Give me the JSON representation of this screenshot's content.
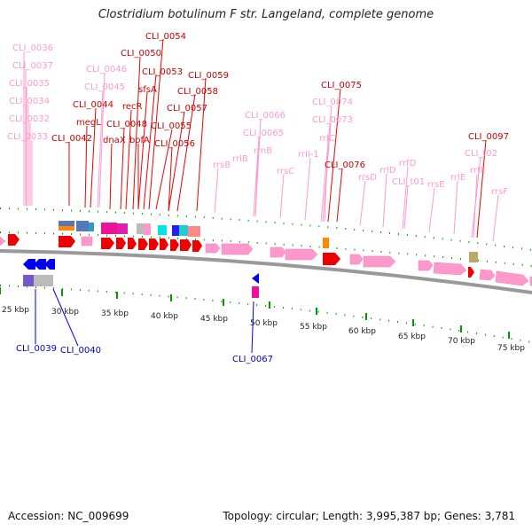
{
  "title": "Clostridium botulinum F str. Langeland, complete genome",
  "footer": {
    "accession": "Accession: NC_009699",
    "topology": "Topology: circular; Length: 3,995,387 bp; Genes: 3,781"
  },
  "colors": {
    "forward_cds": "#ee0000",
    "reverse_cds": "#0000ee",
    "rna": "#ff99cc",
    "tick": "#009900",
    "backbone": "#999999"
  },
  "axis": {
    "unit": "kbp",
    "tick_labels": [
      "25 kbp",
      "30 kbp",
      "35 kbp",
      "40 kbp",
      "45 kbp",
      "50 kbp",
      "55 kbp",
      "60 kbp",
      "65 kbp",
      "70 kbp",
      "75 kbp"
    ]
  },
  "features": {
    "pink_labels": [
      "CLI_0036",
      "CLI_0037",
      "CLI_0035",
      "CLI_0034",
      "CLI_0032",
      "CLI_0033",
      "CLI_0046",
      "CLI_0045",
      "CLI_0066",
      "CLI_0065",
      "CLI_0074",
      "CLI_0073",
      "rrlC",
      "rrsB",
      "rrlB",
      "rrnB",
      "rrsC",
      "rrlI-1",
      "rrsD",
      "rrlD",
      "rrfD",
      "CLI_t01",
      "rrsE",
      "rrlE",
      "CLI_t02",
      "rrfE",
      "rrsF"
    ],
    "red_labels": [
      "CLI_0054",
      "CLI_0050",
      "CLI_0053",
      "sfsA",
      "CLI_0059",
      "CLI_0058",
      "CLI_0044",
      "recR",
      "megL",
      "CLI_0048",
      "CLI_0057",
      "CLI_0042",
      "dnaX",
      "bofA",
      "CLI_0055",
      "CLI_0056",
      "CLI_0075",
      "CLI_0076",
      "CLI_0097"
    ],
    "blue_labels": [
      "CLI_0039",
      "CLI_0040",
      "CLI_0067"
    ]
  }
}
